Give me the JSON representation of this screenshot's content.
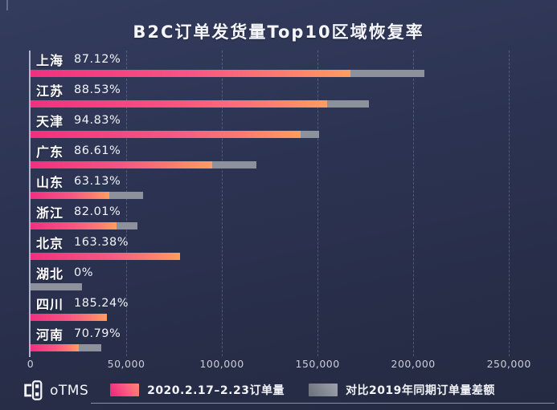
{
  "logo": {
    "text": "oTMS"
  },
  "legend": {
    "items": [
      {
        "label": "2020.2.17–2.23订单量",
        "swatch_color": "#ee2d7b"
      },
      {
        "label": "对比2019年同期订单量差额",
        "swatch_color": "#8d919b"
      }
    ]
  },
  "colors": {
    "background": "#2c3352",
    "bar_gradient_start": "#f1307f",
    "bar_gradient_end": "#ff9d5e",
    "bar_gap_gray": "#8d919b",
    "axis_line": "#c7cde3",
    "text": "#ffffff"
  },
  "chart_data": {
    "type": "bar",
    "orientation": "horizontal",
    "title": "B2C订单发货量Top10区域恢复率",
    "categories": [
      "上海",
      "江苏",
      "天津",
      "广东",
      "山东",
      "浙江",
      "北京",
      "湖北",
      "四川",
      "河南"
    ],
    "recovery_rate_labels": [
      "87.12%",
      "88.53%",
      "94.83%",
      "86.61%",
      "63.13%",
      "82.01%",
      "163.38%",
      "0%",
      "185.24%",
      "70.79%"
    ],
    "recovery_rate_values": [
      87.12,
      88.53,
      94.83,
      86.61,
      63.13,
      82.01,
      163.38,
      0,
      185.24,
      70.79
    ],
    "series": [
      {
        "name": "2020.2.17–2.23订单量",
        "values": [
          167000,
          155000,
          141000,
          95000,
          41000,
          45000,
          78000,
          0,
          40000,
          25000
        ]
      },
      {
        "name": "对比2019年同期订单量差额",
        "values": [
          39000,
          22000,
          10000,
          23000,
          18000,
          11000,
          0,
          27000,
          0,
          12000
        ]
      }
    ],
    "x_ticks": [
      "0",
      "50,000",
      "100,000",
      "150,000",
      "200,000",
      "250,000"
    ],
    "x_tick_values": [
      0,
      50000,
      100000,
      150000,
      200000,
      250000
    ],
    "xlim": [
      0,
      260000
    ],
    "grid": "dashed-vertical",
    "legend_position": "bottom"
  }
}
